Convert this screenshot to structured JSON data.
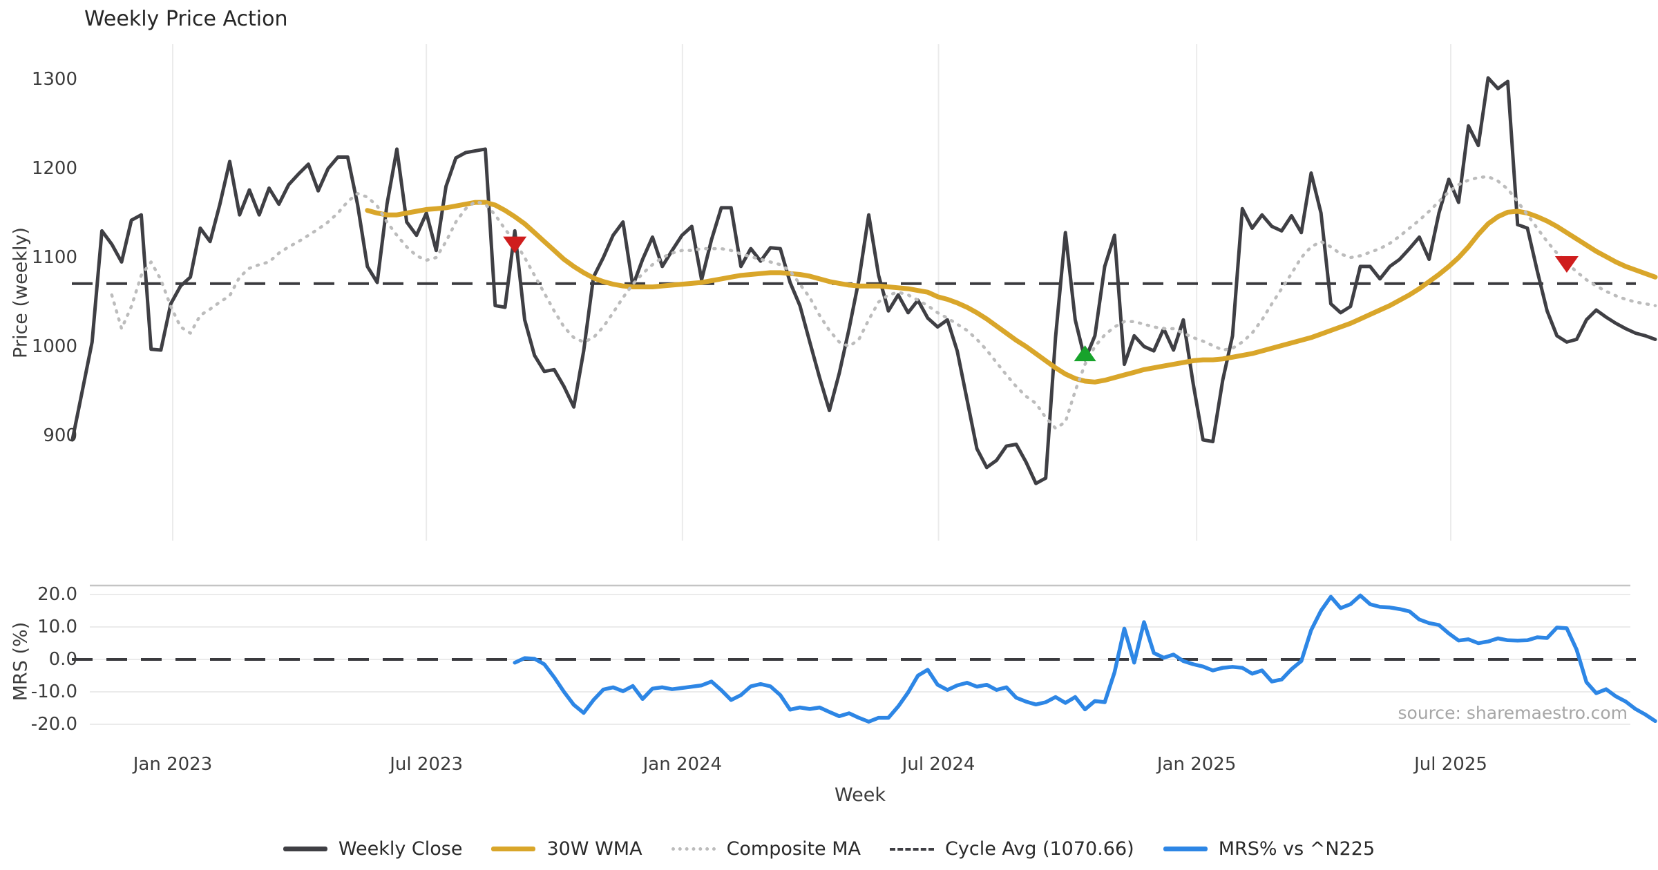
{
  "title": "Weekly Price Action",
  "source": "source: sharemaestro.com",
  "price_axis": {
    "label": "Price (weekly)",
    "ticks": [
      "1300",
      "1200",
      "1100",
      "1000",
      "900"
    ],
    "tick_values": [
      1300,
      1200,
      1100,
      1000,
      900
    ]
  },
  "mrs_axis": {
    "label": "MRS (%)",
    "ticks": [
      "20.0",
      "10.0",
      "0.0",
      "-10.0",
      "-20.0"
    ],
    "tick_values": [
      20,
      10,
      0,
      -10,
      -20
    ]
  },
  "x_axis": {
    "label": "Week",
    "ticks": [
      {
        "label": "Jan 2023",
        "week": 10.2
      },
      {
        "label": "Jul 2023",
        "week": 36.0
      },
      {
        "label": "Jan 2024",
        "week": 62.05
      },
      {
        "label": "Jul 2024",
        "week": 88.1
      },
      {
        "label": "Jan 2025",
        "week": 114.35
      },
      {
        "label": "Jul 2025",
        "week": 140.2
      }
    ]
  },
  "legend": [
    {
      "label": "Weekly Close",
      "style": "solid",
      "color": "#3f3f44"
    },
    {
      "label": "30W WMA",
      "style": "solid",
      "color": "#d9a62a"
    },
    {
      "label": "Composite MA",
      "style": "dotted",
      "color": "#bcbcbc"
    },
    {
      "label": "Cycle Avg (1070.66)",
      "style": "dashed",
      "color": "#3f3f44"
    },
    {
      "label": "MRS% vs ^N225",
      "style": "solid",
      "color": "#2d86e5"
    }
  ],
  "colors": {
    "weekly_close": "#3f3f44",
    "wma": "#d9a62a",
    "composite": "#bcbcbc",
    "cycle_avg": "#3a3a3e",
    "mrs": "#2d86e5",
    "sell_marker": "#cf1d1d",
    "buy_marker": "#17a32b",
    "gridline": "#ebebeb",
    "panel_spine": "#c4c4c4"
  },
  "chart_data": {
    "type": "line",
    "x_unit": "weekly points (week index)",
    "weeks": 162,
    "cycle_avg": 1070.66,
    "ylim_price": [
      840,
      1330
    ],
    "ylim_mrs": [
      -25,
      22
    ],
    "legend_position": "bottom-center",
    "grid": {
      "price_panel": "vertical-only",
      "mrs_panel": "horizontal-only"
    },
    "series": [
      {
        "name": "Weekly Close",
        "panel": "price",
        "style": "solid",
        "values": [
          895,
          950,
          1005,
          1130,
          1115,
          1095,
          1142,
          1148,
          997,
          996,
          1048,
          1068,
          1078,
          1133,
          1118,
          1160,
          1208,
          1148,
          1176,
          1148,
          1178,
          1160,
          1182,
          1194,
          1205,
          1175,
          1200,
          1213,
          1213,
          1160,
          1090,
          1072,
          1160,
          1222,
          1140,
          1125,
          1150,
          1108,
          1180,
          1212,
          1218,
          1220,
          1222,
          1046,
          1044,
          1130,
          1030,
          990,
          972,
          974,
          955,
          932,
          995,
          1078,
          1100,
          1125,
          1140,
          1068,
          1098,
          1123,
          1090,
          1108,
          1125,
          1135,
          1075,
          1120,
          1156,
          1156,
          1090,
          1110,
          1096,
          1111,
          1110,
          1072,
          1046,
          1005,
          965,
          928,
          970,
          1020,
          1075,
          1148,
          1080,
          1040,
          1058,
          1038,
          1052,
          1032,
          1022,
          1030,
          995,
          940,
          885,
          864,
          872,
          888,
          890,
          870,
          846,
          852,
          1010,
          1128,
          1030,
          985,
          1012,
          1090,
          1125,
          980,
          1012,
          1000,
          995,
          1020,
          996,
          1030,
          958,
          895,
          893,
          962,
          1012,
          1155,
          1133,
          1148,
          1135,
          1130,
          1147,
          1128,
          1195,
          1150,
          1048,
          1038,
          1045,
          1090,
          1090,
          1076,
          1090,
          1098,
          1110,
          1123,
          1098,
          1150,
          1188,
          1162,
          1248,
          1226,
          1302,
          1290,
          1298,
          1137,
          1133,
          1085,
          1040,
          1012,
          1005,
          1008,
          1030,
          1041,
          1033,
          1026,
          1020,
          1015,
          1012,
          1008
        ]
      },
      {
        "name": "30W WMA",
        "panel": "price",
        "style": "solid",
        "values": [
          null,
          null,
          null,
          null,
          null,
          null,
          null,
          null,
          null,
          null,
          null,
          null,
          null,
          null,
          null,
          null,
          null,
          null,
          null,
          null,
          null,
          null,
          null,
          null,
          null,
          null,
          null,
          null,
          null,
          null,
          1153,
          1150,
          1148,
          1148,
          1150,
          1152,
          1154,
          1155,
          1156,
          1158,
          1160,
          1162,
          1162,
          1159,
          1153,
          1146,
          1138,
          1128,
          1118,
          1108,
          1098,
          1090,
          1083,
          1077,
          1073,
          1070,
          1068,
          1067,
          1067,
          1067,
          1068,
          1069,
          1070,
          1071,
          1072,
          1074,
          1076,
          1078,
          1080,
          1081,
          1082,
          1083,
          1083,
          1082,
          1081,
          1079,
          1076,
          1073,
          1071,
          1069,
          1068,
          1068,
          1068,
          1067,
          1066,
          1065,
          1063,
          1061,
          1056,
          1053,
          1049,
          1044,
          1038,
          1031,
          1023,
          1015,
          1007,
          1000,
          992,
          984,
          976,
          969,
          964,
          961,
          960,
          962,
          965,
          968,
          971,
          974,
          976,
          978,
          980,
          982,
          984,
          985,
          985,
          986,
          988,
          990,
          992,
          995,
          998,
          1001,
          1004,
          1007,
          1010,
          1014,
          1018,
          1022,
          1026,
          1031,
          1036,
          1041,
          1046,
          1052,
          1058,
          1065,
          1073,
          1081,
          1090,
          1100,
          1112,
          1126,
          1138,
          1146,
          1151,
          1152,
          1150,
          1146,
          1141,
          1135,
          1128,
          1121,
          1114,
          1107,
          1101,
          1095,
          1090,
          1086,
          1082,
          1078
        ]
      },
      {
        "name": "Composite MA",
        "panel": "price",
        "style": "dotted",
        "values": [
          null,
          null,
          null,
          null,
          1058,
          1020,
          1045,
          1080,
          1095,
          1075,
          1045,
          1022,
          1015,
          1035,
          1042,
          1050,
          1057,
          1078,
          1088,
          1092,
          1095,
          1105,
          1112,
          1118,
          1125,
          1132,
          1140,
          1150,
          1163,
          1172,
          1168,
          1158,
          1140,
          1125,
          1112,
          1102,
          1097,
          1100,
          1118,
          1140,
          1155,
          1163,
          1160,
          1148,
          1132,
          1118,
          1100,
          1080,
          1060,
          1040,
          1022,
          1010,
          1005,
          1010,
          1022,
          1038,
          1055,
          1070,
          1082,
          1092,
          1100,
          1105,
          1108,
          1108,
          1110,
          1110,
          1110,
          1108,
          1104,
          1101,
          1098,
          1095,
          1092,
          1085,
          1070,
          1055,
          1035,
          1018,
          1005,
          1000,
          1008,
          1030,
          1050,
          1058,
          1061,
          1058,
          1052,
          1046,
          1038,
          1032,
          1025,
          1018,
          1008,
          996,
          982,
          968,
          955,
          944,
          936,
          920,
          908,
          915,
          950,
          980,
          1000,
          1013,
          1022,
          1028,
          1028,
          1025,
          1022,
          1020,
          1020,
          1015,
          1010,
          1006,
          1001,
          996,
          998,
          1005,
          1015,
          1030,
          1048,
          1065,
          1082,
          1100,
          1112,
          1118,
          1112,
          1104,
          1100,
          1102,
          1106,
          1110,
          1116,
          1124,
          1133,
          1142,
          1152,
          1163,
          1174,
          1182,
          1187,
          1190,
          1191,
          1186,
          1177,
          1163,
          1148,
          1133,
          1118,
          1105,
          1094,
          1084,
          1075,
          1068,
          1062,
          1057,
          1053,
          1050,
          1048,
          1046
        ]
      },
      {
        "name": "MRS% vs ^N225",
        "panel": "mrs",
        "style": "solid",
        "values": [
          null,
          null,
          null,
          null,
          null,
          null,
          null,
          null,
          null,
          null,
          null,
          null,
          null,
          null,
          null,
          null,
          null,
          null,
          null,
          null,
          null,
          null,
          null,
          null,
          null,
          null,
          null,
          null,
          null,
          null,
          null,
          null,
          null,
          null,
          null,
          null,
          null,
          null,
          null,
          null,
          null,
          null,
          null,
          null,
          null,
          -1.0,
          0.4,
          0.2,
          -1.5,
          -5.5,
          -10.0,
          -14.0,
          -16.5,
          -12.5,
          -9.3,
          -8.6,
          -9.8,
          -8.2,
          -12.2,
          -9.0,
          -8.6,
          -9.2,
          -8.8,
          -8.4,
          -8.0,
          -6.8,
          -9.5,
          -12.5,
          -11.0,
          -8.3,
          -7.6,
          -8.3,
          -11.0,
          -15.5,
          -14.8,
          -15.3,
          -14.8,
          -16.2,
          -17.5,
          -16.6,
          -18.0,
          -19.2,
          -18.0,
          -18.0,
          -14.5,
          -10.2,
          -5.0,
          -3.2,
          -7.8,
          -9.4,
          -8.0,
          -7.2,
          -8.4,
          -7.8,
          -9.4,
          -8.6,
          -11.8,
          -13.0,
          -13.9,
          -13.2,
          -11.6,
          -13.4,
          -11.6,
          -15.4,
          -12.8,
          -13.2,
          -4.0,
          9.5,
          -1.0,
          11.5,
          2.0,
          0.5,
          1.5,
          -0.5,
          -1.5,
          -2.2,
          -3.4,
          -2.6,
          -2.3,
          -2.6,
          -4.4,
          -3.4,
          -6.8,
          -6.2,
          -3.0,
          -0.5,
          9.0,
          15.0,
          19.3,
          15.8,
          17.0,
          19.7,
          17.0,
          16.2,
          16.0,
          15.5,
          14.8,
          12.3,
          11.2,
          10.6,
          8.0,
          5.8,
          6.2,
          5.0,
          5.5,
          6.5,
          5.9,
          5.8,
          5.9,
          6.8,
          6.6,
          9.8,
          9.6,
          3.0,
          -7.0,
          -10.4,
          -9.2,
          -11.4,
          -13.0,
          -15.3,
          -17.0,
          -19.0
        ]
      }
    ],
    "markers": {
      "sell": [
        {
          "week": 45,
          "price": 1115
        },
        {
          "week": 152,
          "price": 1093
        }
      ],
      "buy": [
        {
          "week": 103,
          "price": 992
        }
      ]
    }
  }
}
